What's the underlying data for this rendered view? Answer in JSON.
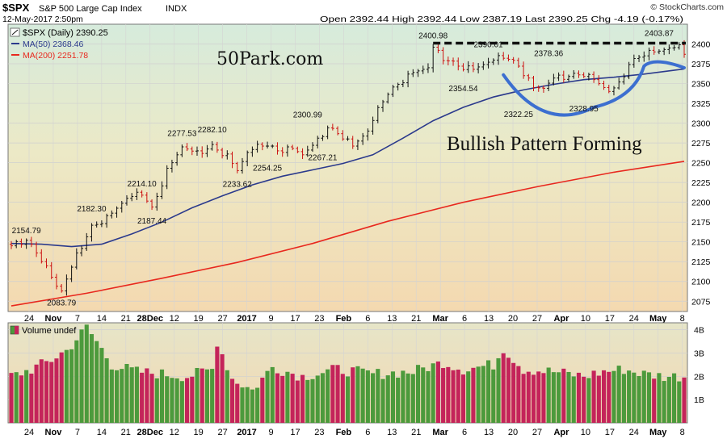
{
  "header": {
    "symbol": "$SPX",
    "name": "S&P 500 Large Cap Index",
    "exchange": "INDX",
    "datetime": "12-May-2017 2:50pm",
    "brand": "© StockCharts.com",
    "ohlc_text": "Open 2392.44 High 2392.44 Low 2387.19 Last 2390.25 Chg -4.19 (-0.17%)"
  },
  "legend": {
    "price": "$SPX (Daily) 2390.25",
    "ma50": "MA(50) 2368.46",
    "ma200": "MA(200) 2251.78",
    "volume": "Volume undef"
  },
  "annotations": {
    "watermark": "50Park.com",
    "pattern": "Bullish Pattern Forming"
  },
  "colors": {
    "up": "#111111",
    "down": "#cc1111",
    "ma50": "#2b3a8c",
    "ma200": "#e8281e",
    "cup": "#3c6fd0",
    "vol_up": "#4c9a3c",
    "vol_down": "#c4245a"
  },
  "chart_data": [
    {
      "type": "line",
      "title": "$SPX (Daily)",
      "y_ticks": [
        2075,
        2100,
        2125,
        2150,
        2175,
        2200,
        2225,
        2250,
        2275,
        2300,
        2325,
        2350,
        2375,
        2400
      ],
      "ylim": [
        2062,
        2425
      ],
      "x_labels": [
        "24",
        "Nov",
        "7",
        "14",
        "21",
        "28Dec",
        "12",
        "19",
        "27",
        "2017",
        "9",
        "17",
        "23",
        "Feb",
        "6",
        "13",
        "21",
        "Mar",
        "6",
        "13",
        "20",
        "27",
        "Apr",
        "10",
        "17",
        "24",
        "May",
        "8"
      ],
      "price_labels": [
        {
          "text": "2154.79",
          "value": 2154.79
        },
        {
          "text": "2083.79",
          "value": 2083.79
        },
        {
          "text": "2182.30",
          "value": 2182.3
        },
        {
          "text": "2214.10",
          "value": 2214.1
        },
        {
          "text": "2187.44",
          "value": 2187.44
        },
        {
          "text": "2277.53",
          "value": 2277.53
        },
        {
          "text": "2282.10",
          "value": 2282.1
        },
        {
          "text": "2233.62",
          "value": 2233.62
        },
        {
          "text": "2254.25",
          "value": 2254.25
        },
        {
          "text": "2300.99",
          "value": 2300.99
        },
        {
          "text": "2267.21",
          "value": 2267.21
        },
        {
          "text": "2400.98",
          "value": 2400.98
        },
        {
          "text": "2354.54",
          "value": 2354.54
        },
        {
          "text": "2390.01",
          "value": 2390.01
        },
        {
          "text": "2322.25",
          "value": 2322.25
        },
        {
          "text": "2378.36",
          "value": 2378.36
        },
        {
          "text": "2328.95",
          "value": 2328.95
        },
        {
          "text": "2403.87",
          "value": 2403.87
        }
      ],
      "close_anchors": [
        {
          "day": 0,
          "close": 2145
        },
        {
          "day": 3,
          "close": 2152
        },
        {
          "day": 6,
          "close": 2128
        },
        {
          "day": 9,
          "close": 2094
        },
        {
          "day": 10,
          "close": 2088
        },
        {
          "day": 13,
          "close": 2133
        },
        {
          "day": 16,
          "close": 2168
        },
        {
          "day": 19,
          "close": 2180
        },
        {
          "day": 23,
          "close": 2205
        },
        {
          "day": 26,
          "close": 2212
        },
        {
          "day": 28,
          "close": 2191
        },
        {
          "day": 31,
          "close": 2240
        },
        {
          "day": 34,
          "close": 2270
        },
        {
          "day": 37,
          "close": 2262
        },
        {
          "day": 40,
          "close": 2270
        },
        {
          "day": 43,
          "close": 2258
        },
        {
          "day": 45,
          "close": 2240
        },
        {
          "day": 47,
          "close": 2263
        },
        {
          "day": 50,
          "close": 2274
        },
        {
          "day": 53,
          "close": 2265
        },
        {
          "day": 56,
          "close": 2268
        },
        {
          "day": 58,
          "close": 2260
        },
        {
          "day": 61,
          "close": 2278
        },
        {
          "day": 63,
          "close": 2294
        },
        {
          "day": 66,
          "close": 2283
        },
        {
          "day": 68,
          "close": 2271
        },
        {
          "day": 71,
          "close": 2290
        },
        {
          "day": 74,
          "close": 2330
        },
        {
          "day": 77,
          "close": 2349
        },
        {
          "day": 80,
          "close": 2364
        },
        {
          "day": 83,
          "close": 2370
        },
        {
          "day": 84,
          "close": 2396
        },
        {
          "day": 86,
          "close": 2382
        },
        {
          "day": 89,
          "close": 2372
        },
        {
          "day": 92,
          "close": 2368
        },
        {
          "day": 95,
          "close": 2377
        },
        {
          "day": 98,
          "close": 2385
        },
        {
          "day": 101,
          "close": 2372
        },
        {
          "day": 104,
          "close": 2345
        },
        {
          "day": 106,
          "close": 2344
        },
        {
          "day": 108,
          "close": 2357
        },
        {
          "day": 111,
          "close": 2359
        },
        {
          "day": 114,
          "close": 2362
        },
        {
          "day": 116,
          "close": 2355
        },
        {
          "day": 119,
          "close": 2340
        },
        {
          "day": 121,
          "close": 2349
        },
        {
          "day": 123,
          "close": 2374
        },
        {
          "day": 126,
          "close": 2388
        },
        {
          "day": 129,
          "close": 2391
        },
        {
          "day": 131,
          "close": 2395
        },
        {
          "day": 133,
          "close": 2396
        },
        {
          "day": 134,
          "close": 2390
        }
      ],
      "resistance_level": 2401,
      "series": [
        {
          "name": "MA(50)",
          "points": [
            [
              0,
              2148
            ],
            [
              6,
              2147
            ],
            [
              12,
              2144
            ],
            [
              18,
              2147
            ],
            [
              24,
              2160
            ],
            [
              30,
              2175
            ],
            [
              36,
              2193
            ],
            [
              42,
              2208
            ],
            [
              48,
              2222
            ],
            [
              54,
              2233
            ],
            [
              60,
              2241
            ],
            [
              66,
              2249
            ],
            [
              72,
              2260
            ],
            [
              78,
              2281
            ],
            [
              84,
              2303
            ],
            [
              90,
              2320
            ],
            [
              96,
              2333
            ],
            [
              102,
              2342
            ],
            [
              108,
              2349
            ],
            [
              114,
              2355
            ],
            [
              120,
              2358
            ],
            [
              126,
              2362
            ],
            [
              134,
              2368.46
            ]
          ]
        },
        {
          "name": "MA(200)",
          "points": [
            [
              0,
              2069
            ],
            [
              15,
              2085
            ],
            [
              30,
              2104
            ],
            [
              45,
              2124
            ],
            [
              60,
              2148
            ],
            [
              75,
              2176
            ],
            [
              90,
              2200
            ],
            [
              105,
              2220
            ],
            [
              120,
              2238
            ],
            [
              134,
              2251.78
            ]
          ]
        }
      ]
    },
    {
      "type": "bar",
      "title": "Volume undef",
      "y_ticks": [
        "4B",
        "3B",
        "2B",
        "1B"
      ],
      "ylim": [
        0,
        4.3
      ],
      "volume_anchors": [
        {
          "day": 0,
          "v": 2.0
        },
        {
          "day": 4,
          "v": 2.3
        },
        {
          "day": 8,
          "v": 2.7
        },
        {
          "day": 10,
          "v": 3.0
        },
        {
          "day": 11,
          "v": 3.1
        },
        {
          "day": 15,
          "v": 4.1
        },
        {
          "day": 17,
          "v": 3.5
        },
        {
          "day": 20,
          "v": 2.5
        },
        {
          "day": 25,
          "v": 2.2
        },
        {
          "day": 30,
          "v": 2.1
        },
        {
          "day": 35,
          "v": 2.0
        },
        {
          "day": 40,
          "v": 2.3
        },
        {
          "day": 41,
          "v": 3.5
        },
        {
          "day": 44,
          "v": 1.9
        },
        {
          "day": 48,
          "v": 1.4
        },
        {
          "day": 52,
          "v": 2.4
        },
        {
          "day": 58,
          "v": 2.0
        },
        {
          "day": 65,
          "v": 2.3
        },
        {
          "day": 72,
          "v": 2.1
        },
        {
          "day": 80,
          "v": 2.2
        },
        {
          "day": 86,
          "v": 2.6
        },
        {
          "day": 90,
          "v": 2.3
        },
        {
          "day": 96,
          "v": 2.5
        },
        {
          "day": 98,
          "v": 3.2
        },
        {
          "day": 102,
          "v": 2.3
        },
        {
          "day": 108,
          "v": 2.2
        },
        {
          "day": 114,
          "v": 2.0
        },
        {
          "day": 118,
          "v": 2.2
        },
        {
          "day": 122,
          "v": 2.3
        },
        {
          "day": 126,
          "v": 2.1
        },
        {
          "day": 130,
          "v": 2.0
        },
        {
          "day": 134,
          "v": 2.0
        }
      ]
    }
  ]
}
